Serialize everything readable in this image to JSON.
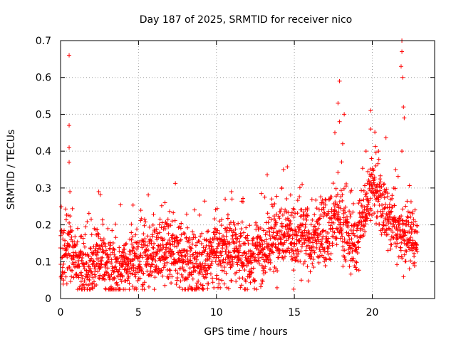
{
  "chart_data": {
    "type": "scatter",
    "title": "Day 187 of 2025, SRMTID for receiver nico",
    "xlabel": "GPS time / hours",
    "ylabel": "SRMTID / TECUs",
    "xlim": [
      0,
      24
    ],
    "ylim": [
      0,
      0.7
    ],
    "xticks": [
      0,
      5,
      10,
      15,
      20
    ],
    "xtick_labels": [
      "0",
      "5",
      "10",
      "15",
      "20"
    ],
    "yticks": [
      0,
      0.1,
      0.2,
      0.3,
      0.4,
      0.5,
      0.6,
      0.7
    ],
    "ytick_labels": [
      "0",
      "0.1",
      "0.2",
      "0.3",
      "0.4",
      "0.5",
      "0.6",
      "0.7"
    ],
    "grid": true,
    "marker": "+",
    "color": "#ff0000",
    "series": [
      {
        "name": "SRMTID",
        "description": "approximate envelope of dense scatter (one sample every ~0.02 h)",
        "x_range": [
          0,
          22.9
        ],
        "points_per_hour": 100,
        "baseline": [
          [
            0.0,
            0.12
          ],
          [
            0.5,
            0.15
          ],
          [
            1.0,
            0.1
          ],
          [
            1.5,
            0.08
          ],
          [
            2.0,
            0.09
          ],
          [
            2.5,
            0.12
          ],
          [
            3.0,
            0.08
          ],
          [
            4.0,
            0.09
          ],
          [
            5.0,
            0.1
          ],
          [
            6.0,
            0.13
          ],
          [
            7.0,
            0.12
          ],
          [
            8.0,
            0.1
          ],
          [
            9.0,
            0.09
          ],
          [
            10.0,
            0.12
          ],
          [
            11.0,
            0.14
          ],
          [
            12.0,
            0.11
          ],
          [
            13.0,
            0.13
          ],
          [
            14.0,
            0.17
          ],
          [
            14.5,
            0.2
          ],
          [
            15.0,
            0.15
          ],
          [
            15.5,
            0.17
          ],
          [
            16.0,
            0.15
          ],
          [
            16.5,
            0.17
          ],
          [
            17.0,
            0.19
          ],
          [
            17.5,
            0.21
          ],
          [
            18.0,
            0.22
          ],
          [
            18.5,
            0.16
          ],
          [
            19.0,
            0.15
          ],
          [
            19.5,
            0.25
          ],
          [
            20.0,
            0.31
          ],
          [
            20.5,
            0.26
          ],
          [
            21.0,
            0.22
          ],
          [
            21.5,
            0.2
          ],
          [
            22.0,
            0.17
          ],
          [
            22.5,
            0.17
          ],
          [
            22.9,
            0.16
          ]
        ],
        "spread": 0.045,
        "peaks": [
          {
            "x": 0.55,
            "y": 0.66
          },
          {
            "x": 0.55,
            "y": 0.47
          },
          {
            "x": 0.55,
            "y": 0.41
          },
          {
            "x": 0.55,
            "y": 0.37
          },
          {
            "x": 0.6,
            "y": 0.29
          },
          {
            "x": 2.45,
            "y": 0.29
          },
          {
            "x": 6.7,
            "y": 0.26
          },
          {
            "x": 11.0,
            "y": 0.27
          },
          {
            "x": 14.3,
            "y": 0.35
          },
          {
            "x": 14.2,
            "y": 0.3
          },
          {
            "x": 15.5,
            "y": 0.31
          },
          {
            "x": 17.6,
            "y": 0.45
          },
          {
            "x": 17.9,
            "y": 0.59
          },
          {
            "x": 17.8,
            "y": 0.53
          },
          {
            "x": 17.9,
            "y": 0.48
          },
          {
            "x": 18.2,
            "y": 0.5
          },
          {
            "x": 18.1,
            "y": 0.42
          },
          {
            "x": 19.6,
            "y": 0.4
          },
          {
            "x": 19.9,
            "y": 0.51
          },
          {
            "x": 19.9,
            "y": 0.46
          },
          {
            "x": 20.4,
            "y": 0.4
          },
          {
            "x": 21.5,
            "y": 0.35
          },
          {
            "x": 21.9,
            "y": 0.7
          },
          {
            "x": 21.9,
            "y": 0.67
          },
          {
            "x": 21.85,
            "y": 0.63
          },
          {
            "x": 21.95,
            "y": 0.6
          },
          {
            "x": 22.0,
            "y": 0.52
          },
          {
            "x": 22.05,
            "y": 0.49
          },
          {
            "x": 21.9,
            "y": 0.4
          }
        ]
      }
    ]
  }
}
